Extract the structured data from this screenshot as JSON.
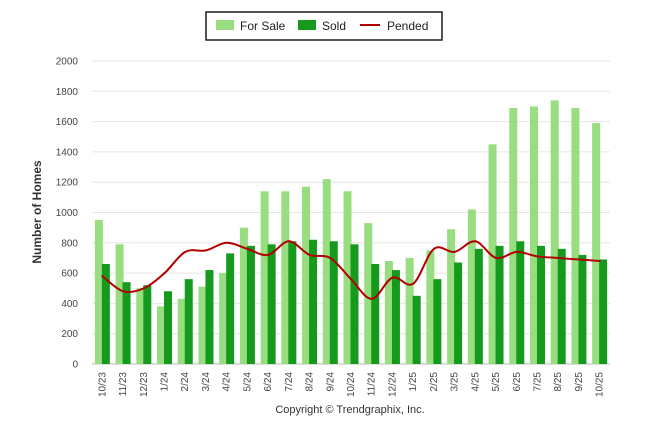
{
  "chart_data": {
    "type": "bar",
    "ylabel": "Number of Homes",
    "ylim": [
      0,
      2000
    ],
    "yticks": [
      0,
      200,
      400,
      600,
      800,
      1000,
      1200,
      1400,
      1600,
      1800,
      2000
    ],
    "grid": true,
    "legend_position": "top-center",
    "categories": [
      "10/23",
      "11/23",
      "12/23",
      "1/24",
      "2/24",
      "3/24",
      "4/24",
      "5/24",
      "6/24",
      "7/24",
      "8/24",
      "9/24",
      "10/24",
      "11/24",
      "12/24",
      "1/25",
      "2/25",
      "3/25",
      "4/25",
      "5/25",
      "6/25",
      "7/25",
      "8/25",
      "9/25",
      "10/25"
    ],
    "series": [
      {
        "name": "For Sale",
        "type": "bar",
        "color": "#98dd80",
        "values": [
          950,
          790,
          500,
          380,
          430,
          510,
          600,
          900,
          1140,
          1140,
          1170,
          1220,
          1140,
          930,
          680,
          700,
          750,
          890,
          1020,
          1450,
          1690,
          1700,
          1740,
          1690,
          1590
        ]
      },
      {
        "name": "Sold",
        "type": "bar",
        "color": "#159a1d",
        "values": [
          660,
          540,
          520,
          480,
          560,
          620,
          730,
          780,
          790,
          810,
          820,
          810,
          790,
          660,
          620,
          450,
          560,
          670,
          760,
          780,
          810,
          780,
          760,
          720,
          690
        ]
      },
      {
        "name": "Pended",
        "type": "line",
        "color": "#b20000",
        "values": [
          580,
          480,
          500,
          600,
          740,
          750,
          800,
          760,
          720,
          810,
          720,
          700,
          560,
          430,
          570,
          530,
          760,
          740,
          810,
          700,
          740,
          710,
          700,
          690,
          680
        ]
      }
    ]
  },
  "footer": {
    "copyright": "Copyright © Trendgraphix, Inc."
  }
}
